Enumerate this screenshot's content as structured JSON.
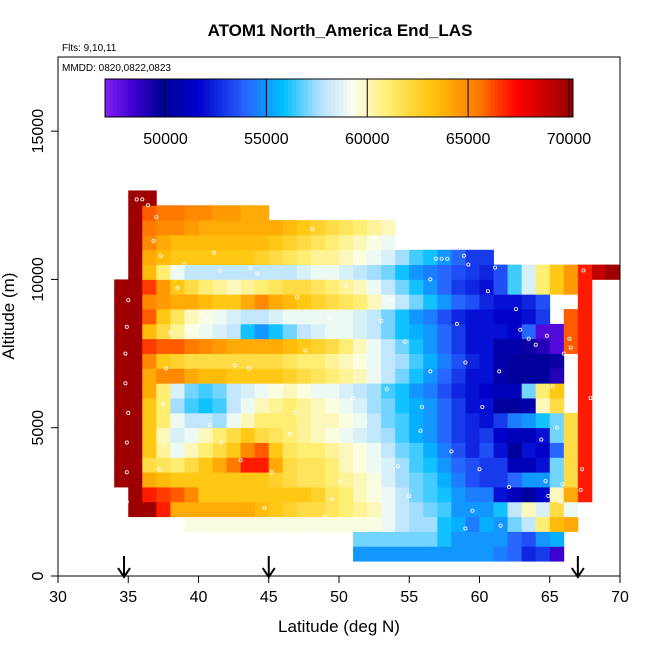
{
  "chart_data": {
    "type": "heatmap",
    "title": "ATOM1 North_America End_LAS",
    "notes": [
      "Flts: 9,10,11",
      "MMDD: 0820,0822,0823"
    ],
    "xlabel": "Latitude (deg N)",
    "ylabel": "Altitude (m)",
    "xlim": [
      30,
      70
    ],
    "ylim": [
      0,
      17500
    ],
    "xticks": [
      "30",
      "35",
      "40",
      "45",
      "50",
      "55",
      "60",
      "65",
      "70"
    ],
    "yticks": [
      "0",
      "5000",
      "10000",
      "15000"
    ],
    "colorbar": {
      "ticks": [
        "50000",
        "55000",
        "60000",
        "65000",
        "70000"
      ],
      "range": [
        47000,
        70200
      ]
    },
    "markers": [
      {
        "lat": 34.7,
        "label": "arrow"
      },
      {
        "lat": 45.0,
        "label": "arrow"
      },
      {
        "lat": 67.0,
        "label": "arrow"
      }
    ],
    "lat_bins": [
      34,
      35,
      36,
      37,
      38,
      39,
      40,
      41,
      42,
      43,
      44,
      45,
      46,
      47,
      48,
      49,
      50,
      51,
      52,
      53,
      54,
      55,
      56,
      57,
      58,
      59,
      60,
      61,
      62,
      63,
      64,
      65,
      66,
      67,
      68,
      69
    ],
    "alt_bins": [
      500,
      1000,
      1500,
      2000,
      2500,
      3000,
      3500,
      4000,
      4500,
      5000,
      5500,
      6000,
      6500,
      7000,
      7500,
      8000,
      8500,
      9000,
      9500,
      10000,
      10500,
      11000,
      11500,
      12000,
      12500
    ],
    "values": [
      [
        null,
        null,
        null,
        null,
        null,
        null,
        null,
        null,
        null,
        null,
        null,
        null,
        null,
        null,
        null,
        null,
        null,
        55000,
        55000,
        55000,
        55000,
        55000,
        55000,
        55000,
        55000,
        55000,
        55000,
        54500,
        54000,
        52500,
        53000,
        48500,
        null,
        null,
        null,
        null
      ],
      [
        null,
        null,
        null,
        null,
        null,
        null,
        null,
        null,
        null,
        null,
        null,
        null,
        null,
        null,
        null,
        null,
        null,
        57000,
        57000,
        57000,
        57000,
        57000,
        57000,
        56000,
        55000,
        55000,
        55000,
        55000,
        54000,
        53500,
        55000,
        55500,
        null,
        null,
        null,
        null
      ],
      [
        null,
        null,
        null,
        null,
        null,
        59500,
        59500,
        59500,
        59500,
        59500,
        59500,
        59500,
        59500,
        59500,
        59500,
        59500,
        59500,
        59500,
        59500,
        59000,
        58000,
        57500,
        57500,
        56000,
        55500,
        54500,
        55500,
        55000,
        57000,
        58000,
        61000,
        63500,
        64000,
        null,
        null,
        null
      ],
      [
        null,
        70000,
        70000,
        67000,
        64000,
        64000,
        64000,
        64000,
        64000,
        64000,
        63500,
        63000,
        62500,
        62000,
        62000,
        61500,
        61000,
        60500,
        60000,
        59000,
        58000,
        57500,
        57000,
        56500,
        55000,
        55000,
        55000,
        56000,
        58000,
        60000,
        58500,
        62000,
        59000,
        null,
        null,
        null
      ],
      [
        null,
        70000,
        67000,
        66500,
        66000,
        65000,
        63000,
        63000,
        63000,
        63000,
        63000,
        63000,
        63000,
        63000,
        62500,
        61500,
        61000,
        60000,
        59500,
        59000,
        58000,
        57000,
        56500,
        56000,
        55000,
        54500,
        54500,
        52000,
        51000,
        50000,
        51500,
        60000,
        64000,
        67000,
        null,
        null
      ],
      [
        70000,
        70000,
        64000,
        63500,
        63000,
        63000,
        63000,
        63000,
        63000,
        63000,
        63000,
        62500,
        62000,
        61500,
        61500,
        61000,
        60500,
        60000,
        59500,
        58500,
        57500,
        57000,
        56500,
        55500,
        54500,
        53500,
        53000,
        53000,
        54000,
        55000,
        55000,
        57000,
        62000,
        67000,
        null,
        null
      ],
      [
        70000,
        70000,
        62000,
        61500,
        61000,
        62000,
        63000,
        64000,
        65500,
        67000,
        67000,
        64000,
        62000,
        61500,
        61500,
        61000,
        60000,
        59500,
        59000,
        58500,
        57500,
        56500,
        56000,
        55000,
        54000,
        53500,
        53000,
        53000,
        51000,
        51000,
        52000,
        57000,
        62000,
        67000,
        null,
        null
      ],
      [
        70000,
        70000,
        63000,
        60500,
        59000,
        60000,
        61000,
        62000,
        63000,
        65000,
        66000,
        63000,
        61500,
        61000,
        61000,
        60500,
        60000,
        59500,
        59000,
        58000,
        57000,
        56500,
        55500,
        54500,
        53500,
        52500,
        53500,
        52000,
        50000,
        52000,
        51500,
        54000,
        62000,
        67000,
        null,
        null
      ],
      [
        70000,
        70000,
        63000,
        60000,
        58500,
        59000,
        60000,
        61000,
        62000,
        63000,
        62000,
        61500,
        61000,
        60500,
        60000,
        59500,
        59000,
        58500,
        58000,
        57500,
        56500,
        55500,
        55000,
        54000,
        53000,
        52500,
        53000,
        51500,
        51000,
        51000,
        52000,
        57000,
        62000,
        67000,
        null,
        null
      ],
      [
        70000,
        70000,
        63000,
        61000,
        59000,
        58000,
        58000,
        57500,
        59000,
        60000,
        61000,
        61000,
        61000,
        60500,
        60000,
        60000,
        59500,
        59000,
        58000,
        57000,
        56500,
        55500,
        55000,
        54000,
        53000,
        52500,
        52000,
        53000,
        54500,
        55000,
        56000,
        57000,
        62000,
        67000,
        null,
        null
      ],
      [
        70000,
        70000,
        63000,
        61000,
        57500,
        56500,
        56000,
        56500,
        58000,
        59000,
        60000,
        60500,
        61000,
        60500,
        60000,
        59500,
        59000,
        58500,
        57500,
        57000,
        56000,
        55500,
        55000,
        54000,
        53000,
        52000,
        52000,
        50000,
        50000,
        50500,
        60000,
        62000,
        null,
        67000,
        null,
        null
      ],
      [
        70000,
        70000,
        64000,
        61000,
        58500,
        57000,
        56500,
        57000,
        58000,
        58500,
        59000,
        59500,
        60000,
        59500,
        59000,
        59000,
        58500,
        58000,
        57500,
        56500,
        56000,
        55000,
        54500,
        53500,
        52500,
        52000,
        51500,
        51000,
        51000,
        57000,
        61000,
        63000,
        null,
        67000,
        null,
        null
      ],
      [
        70000,
        70000,
        64000,
        65000,
        65000,
        64000,
        63500,
        63500,
        63000,
        63000,
        63000,
        63000,
        62500,
        62000,
        61500,
        61000,
        60500,
        60000,
        59000,
        58000,
        57000,
        56000,
        55000,
        54000,
        53000,
        52000,
        52000,
        50500,
        50000,
        50000,
        50000,
        49000,
        null,
        67000,
        null,
        null
      ],
      [
        70000,
        70000,
        65000,
        63000,
        62500,
        62000,
        62000,
        62000,
        62000,
        62000,
        62000,
        62000,
        61500,
        61000,
        61000,
        60500,
        60000,
        59500,
        59000,
        58000,
        57500,
        56500,
        55500,
        54500,
        53500,
        52500,
        52000,
        50500,
        50000,
        50000,
        50000,
        49500,
        null,
        67000,
        null,
        null
      ],
      [
        70000,
        70000,
        66500,
        66000,
        66000,
        65500,
        65000,
        64500,
        64000,
        64000,
        64000,
        64000,
        63500,
        63000,
        62500,
        62000,
        61000,
        60000,
        59000,
        58000,
        57000,
        56000,
        55000,
        54000,
        53000,
        52000,
        52000,
        50500,
        50500,
        49500,
        49000,
        48000,
        66000,
        67000,
        null,
        null
      ],
      [
        70000,
        70000,
        63500,
        62000,
        60500,
        59500,
        59000,
        58500,
        58000,
        56000,
        55000,
        56000,
        57000,
        58000,
        58500,
        59000,
        59000,
        58500,
        58000,
        57000,
        56000,
        55500,
        55000,
        54000,
        53000,
        52000,
        52000,
        52000,
        51500,
        54000,
        48000,
        48000,
        66000,
        67000,
        null,
        null
      ],
      [
        70000,
        70000,
        66000,
        63000,
        61500,
        60000,
        59500,
        59000,
        58500,
        58000,
        58000,
        58500,
        59000,
        59000,
        59000,
        59000,
        59000,
        58500,
        58000,
        57000,
        56000,
        55000,
        54500,
        53500,
        52500,
        52000,
        52000,
        51500,
        51500,
        52000,
        53000,
        null,
        66000,
        67000,
        null,
        null
      ],
      [
        70000,
        70000,
        65000,
        64500,
        64000,
        64000,
        63500,
        63000,
        63000,
        64000,
        65000,
        64000,
        63500,
        63000,
        62500,
        62000,
        61500,
        61000,
        60000,
        59000,
        58000,
        57000,
        56000,
        55000,
        54000,
        53500,
        52500,
        52000,
        52000,
        52500,
        53500,
        null,
        null,
        67000,
        null,
        null
      ],
      [
        70000,
        70000,
        66500,
        64500,
        63000,
        62000,
        61000,
        60500,
        60000,
        60500,
        61000,
        61500,
        62000,
        62000,
        61500,
        61000,
        60500,
        60000,
        59000,
        58000,
        57000,
        56000,
        55000,
        54000,
        53000,
        52500,
        52000,
        53500,
        56500,
        58500,
        61000,
        63000,
        64500,
        67000,
        null,
        null
      ],
      [
        null,
        70000,
        63500,
        61000,
        59000,
        58000,
        58000,
        58000,
        58000,
        58000,
        58000,
        58000,
        58000,
        58500,
        59000,
        59000,
        58500,
        58000,
        57500,
        57000,
        56000,
        55000,
        54500,
        54000,
        53500,
        53000,
        52500,
        53500,
        56500,
        58500,
        61000,
        63000,
        64500,
        67000,
        69000,
        70000
      ],
      [
        null,
        70000,
        64000,
        63500,
        63000,
        63000,
        63000,
        63000,
        63000,
        63000,
        62500,
        62000,
        61500,
        61000,
        60500,
        60500,
        60000,
        59500,
        59000,
        58500,
        57500,
        56500,
        56000,
        55000,
        54000,
        53000,
        53000,
        null,
        null,
        null,
        null,
        null,
        null,
        null,
        null,
        null
      ],
      [
        null,
        70000,
        65000,
        64000,
        63500,
        63500,
        63500,
        63500,
        63500,
        63500,
        63500,
        63000,
        62500,
        62000,
        61500,
        61000,
        60500,
        60000,
        59500,
        59000,
        null,
        null,
        null,
        null,
        null,
        null,
        null,
        null,
        null,
        null,
        null,
        null,
        null,
        null,
        null,
        null
      ],
      [
        null,
        70000,
        65500,
        65000,
        65000,
        64500,
        64000,
        64000,
        64000,
        64000,
        64000,
        64000,
        63500,
        63000,
        62500,
        62000,
        61500,
        61000,
        60500,
        60000,
        null,
        null,
        null,
        null,
        null,
        null,
        null,
        null,
        null,
        null,
        null,
        null,
        null,
        null,
        null,
        null
      ],
      [
        null,
        70000,
        66000,
        65500,
        65500,
        65000,
        65000,
        64500,
        64500,
        64000,
        64000,
        null,
        null,
        null,
        null,
        null,
        null,
        null,
        null,
        null,
        null,
        null,
        null,
        null,
        null,
        null,
        null,
        null,
        null,
        null,
        null,
        null,
        null,
        null,
        null,
        null
      ],
      [
        null,
        70000,
        70000,
        null,
        null,
        null,
        null,
        null,
        null,
        null,
        null,
        null,
        null,
        null,
        null,
        null,
        null,
        null,
        null,
        null,
        null,
        null,
        null,
        null,
        null,
        null,
        null,
        null,
        null,
        null,
        null,
        null,
        null,
        null,
        null,
        null
      ]
    ],
    "points": [
      [
        34.9,
        2500
      ],
      [
        34.9,
        3500
      ],
      [
        34.9,
        4500
      ],
      [
        35.0,
        5500
      ],
      [
        34.8,
        6500
      ],
      [
        34.8,
        7500
      ],
      [
        34.9,
        8400
      ],
      [
        35.0,
        9300
      ],
      [
        35.6,
        12700
      ],
      [
        36.0,
        12700
      ],
      [
        36.4,
        12500
      ],
      [
        37.0,
        12100
      ],
      [
        36.8,
        11300
      ],
      [
        37.3,
        10800
      ],
      [
        37.2,
        3600
      ],
      [
        37.6,
        4400
      ],
      [
        37.5,
        5800
      ],
      [
        37.7,
        7000
      ],
      [
        38.0,
        8200
      ],
      [
        38.5,
        9700
      ],
      [
        39.0,
        10500
      ],
      [
        40.8,
        5100
      ],
      [
        41.6,
        4500
      ],
      [
        42.6,
        7100
      ],
      [
        43.0,
        3900
      ],
      [
        43.7,
        10400
      ],
      [
        44.2,
        10200
      ],
      [
        44.7,
        2300
      ],
      [
        45.2,
        3500
      ],
      [
        45.9,
        6400
      ],
      [
        46.5,
        4800
      ],
      [
        47.0,
        9400
      ],
      [
        47.6,
        7600
      ],
      [
        48.1,
        11700
      ],
      [
        49.0,
        2000
      ],
      [
        49.3,
        8700
      ],
      [
        50.1,
        3200
      ],
      [
        50.5,
        9800
      ],
      [
        51.0,
        6000
      ],
      [
        51.9,
        5200
      ],
      [
        52.6,
        11400
      ],
      [
        53.0,
        8600
      ],
      [
        53.7,
        9300
      ],
      [
        54.2,
        3700
      ],
      [
        54.7,
        7900
      ],
      [
        55.0,
        2700
      ],
      [
        55.4,
        11100
      ],
      [
        55.8,
        4900
      ],
      [
        56.5,
        6900
      ],
      [
        56.5,
        10000
      ],
      [
        56.9,
        10700
      ],
      [
        57.3,
        10700
      ],
      [
        57.7,
        10700
      ],
      [
        58.0,
        4200
      ],
      [
        58.4,
        8500
      ],
      [
        59.0,
        7200
      ],
      [
        59.2,
        10500
      ],
      [
        59.0,
        1600
      ],
      [
        59.5,
        2200
      ],
      [
        60.0,
        3600
      ],
      [
        60.2,
        5700
      ],
      [
        60.6,
        9600
      ],
      [
        61.1,
        10400
      ],
      [
        61.7,
        11000
      ],
      [
        61.4,
        6900
      ],
      [
        62.1,
        3000
      ],
      [
        62.6,
        9000
      ],
      [
        62.9,
        8300
      ],
      [
        63.5,
        8000
      ],
      [
        64.0,
        7800
      ],
      [
        64.4,
        4600
      ],
      [
        64.7,
        3200
      ],
      [
        64.9,
        2700
      ],
      [
        65.5,
        5000
      ],
      [
        65.9,
        3100
      ],
      [
        65.8,
        2500
      ],
      [
        66.5,
        7700
      ],
      [
        67.2,
        2900
      ],
      [
        67.3,
        3600
      ],
      [
        67.4,
        10300
      ],
      [
        67.9,
        6000
      ],
      [
        66.0,
        7500
      ],
      [
        65.2,
        6400
      ],
      [
        64.8,
        8100
      ],
      [
        55.9,
        5700
      ],
      [
        53.4,
        6300
      ],
      [
        41.5,
        10300
      ],
      [
        41.1,
        10900
      ],
      [
        40.6,
        8700
      ],
      [
        39.4,
        8300
      ],
      [
        38.3,
        10400
      ],
      [
        49.5,
        2600
      ],
      [
        46.9,
        5500
      ],
      [
        43.6,
        7000
      ],
      [
        66.4,
        8000
      ],
      [
        66.7,
        7300
      ],
      [
        58.9,
        10800
      ],
      [
        61.5,
        1700
      ]
    ]
  }
}
